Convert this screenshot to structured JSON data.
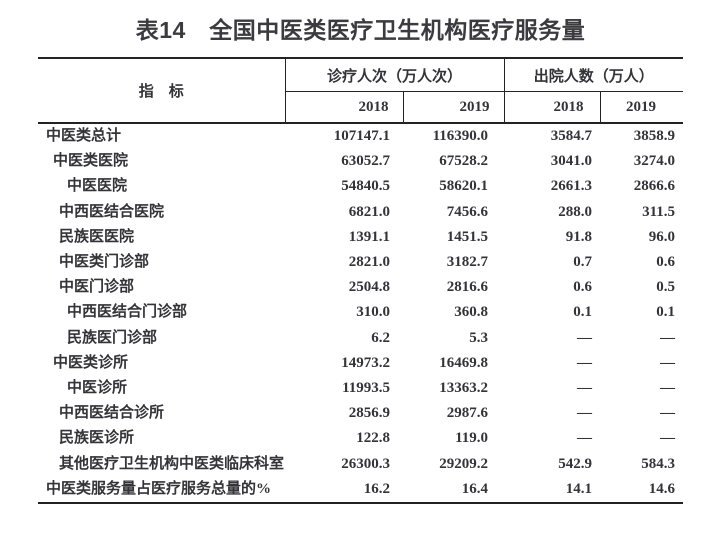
{
  "title": "表14　全国中医类医疗卫生机构医疗服务量",
  "table": {
    "indicator_header": "指　标",
    "groups": [
      {
        "label": "诊疗人次（万人次）",
        "years": [
          "2018",
          "2019"
        ]
      },
      {
        "label": "出院人数（万人）",
        "years": [
          "2018",
          "2019"
        ]
      }
    ],
    "missing_value_symbol": "—",
    "rows": [
      {
        "label": "中医类总计",
        "indent": 0,
        "values": [
          "107147.1",
          "116390.0",
          "3584.7",
          "3858.9"
        ]
      },
      {
        "label": "中医类医院",
        "indent": 1,
        "values": [
          "63052.7",
          "67528.2",
          "3041.0",
          "3274.0"
        ]
      },
      {
        "label": "中医医院",
        "indent": 3,
        "values": [
          "54840.5",
          "58620.1",
          "2661.3",
          "2866.6"
        ]
      },
      {
        "label": "中西医结合医院",
        "indent": 2,
        "values": [
          "6821.0",
          "7456.6",
          "288.0",
          "311.5"
        ]
      },
      {
        "label": "民族医医院",
        "indent": 2,
        "values": [
          "1391.1",
          "1451.5",
          "91.8",
          "96.0"
        ]
      },
      {
        "label": "中医类门诊部",
        "indent": 2,
        "values": [
          "2821.0",
          "3182.7",
          "0.7",
          "0.6"
        ]
      },
      {
        "label": "中医门诊部",
        "indent": 2,
        "values": [
          "2504.8",
          "2816.6",
          "0.6",
          "0.5"
        ]
      },
      {
        "label": "中西医结合门诊部",
        "indent": 3,
        "values": [
          "310.0",
          "360.8",
          "0.1",
          "0.1"
        ]
      },
      {
        "label": "民族医门诊部",
        "indent": 3,
        "values": [
          "6.2",
          "5.3",
          "—",
          "—"
        ]
      },
      {
        "label": "中医类诊所",
        "indent": 1,
        "values": [
          "14973.2",
          "16469.8",
          "—",
          "—"
        ]
      },
      {
        "label": "中医诊所",
        "indent": 3,
        "values": [
          "11993.5",
          "13363.2",
          "—",
          "—"
        ]
      },
      {
        "label": "中西医结合诊所",
        "indent": 2,
        "values": [
          "2856.9",
          "2987.6",
          "—",
          "—"
        ]
      },
      {
        "label": "民族医诊所",
        "indent": 2,
        "values": [
          "122.8",
          "119.0",
          "—",
          "—"
        ]
      },
      {
        "label": "其他医疗卫生机构中医类临床科室",
        "indent": 2,
        "values": [
          "26300.3",
          "29209.2",
          "542.9",
          "584.3"
        ]
      },
      {
        "label": "中医类服务量占医疗服务总量的%",
        "indent": 0,
        "values": [
          "16.2",
          "16.4",
          "14.1",
          "14.6"
        ]
      }
    ]
  },
  "colors": {
    "text": "#333338",
    "border": "#232327",
    "background": "#ffffff"
  }
}
